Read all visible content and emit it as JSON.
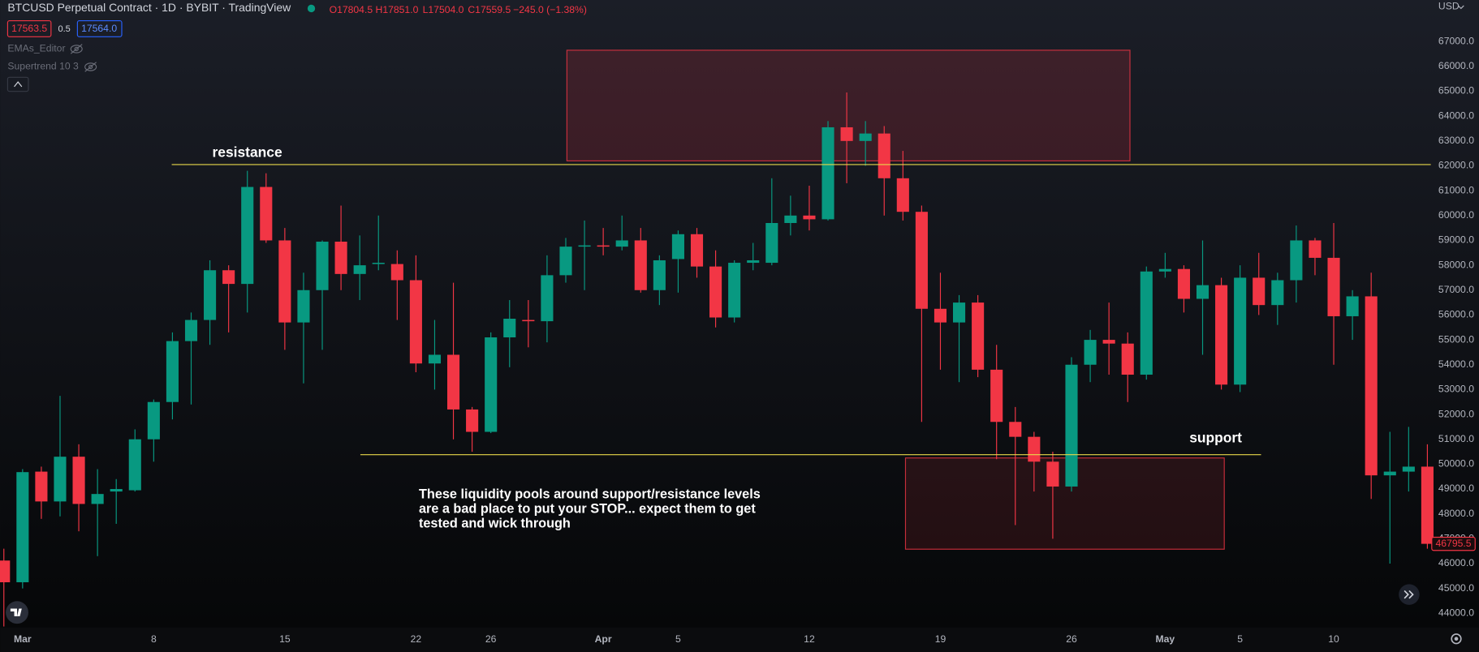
{
  "chart_data": {
    "type": "candlestick",
    "title": "BTCUSD Perpetual Contract · 1D · BYBIT · TradingView",
    "ohlc_legend": [
      "O17804.5",
      "H17851.0",
      "L17504.0",
      "C17559.5",
      "−245.0 (−1.38%)"
    ],
    "bid": "17563.5",
    "spread": "0.5",
    "ask": "17564.0",
    "indicators": [
      "EMAs_Editor",
      "Supertrend 10 3"
    ],
    "currency": "USD",
    "categories": [
      null,
      "Mar",
      null,
      null,
      null,
      null,
      null,
      null,
      "8",
      null,
      null,
      null,
      null,
      null,
      null,
      "15",
      null,
      null,
      null,
      null,
      null,
      null,
      "22",
      null,
      null,
      null,
      "26",
      null,
      null,
      null,
      null,
      null,
      "Apr",
      null,
      null,
      null,
      "5",
      null,
      null,
      null,
      null,
      null,
      null,
      "12",
      null,
      null,
      null,
      null,
      null,
      null,
      "19",
      null,
      null,
      null,
      null,
      null,
      null,
      "26",
      null,
      null,
      null,
      null,
      "May",
      null,
      null,
      null,
      "5",
      null,
      null,
      null,
      null,
      "10",
      null,
      null,
      null,
      null,
      null
    ],
    "open": [
      46123,
      45250,
      49700,
      48500,
      50300,
      48400,
      48900,
      48950,
      51000,
      52500,
      54950,
      55800,
      57800,
      57250,
      61150,
      59000,
      55700,
      57000,
      58950,
      57650,
      58050,
      58050,
      57400,
      54050,
      54400,
      52200,
      51300,
      55100,
      55800,
      55750,
      57600,
      58750,
      58800,
      58750,
      59000,
      57000,
      58250,
      59250,
      57950,
      55900,
      58100,
      58100,
      59700,
      60000,
      59850,
      63550,
      63000,
      63300,
      61500,
      60150,
      56250,
      55700,
      56500,
      53800,
      51700,
      51100,
      50100,
      49100,
      54000,
      55000,
      54850,
      53600,
      57750,
      57850,
      56650,
      57200,
      53200,
      57500,
      56400,
      57400,
      59000,
      58300,
      55950,
      56750,
      49550,
      49700,
      49900
    ],
    "high": [
      46600,
      49800,
      49900,
      52750,
      50800,
      49800,
      49400,
      51400,
      52600,
      55300,
      56100,
      58200,
      58000,
      61800,
      61700,
      59500,
      57700,
      59000,
      60400,
      59200,
      60000,
      58600,
      58400,
      55800,
      57300,
      52300,
      55300,
      56600,
      56600,
      58400,
      59100,
      59800,
      59500,
      60000,
      59500,
      58400,
      59400,
      59500,
      58600,
      58200,
      58900,
      61500,
      60800,
      61200,
      63800,
      64950,
      63800,
      63600,
      62600,
      60400,
      57700,
      56800,
      56800,
      54800,
      52300,
      51300,
      50500,
      54300,
      55400,
      56500,
      55300,
      57950,
      58500,
      58000,
      59000,
      57500,
      58000,
      58500,
      57700,
      59600,
      59100,
      59700,
      57000,
      57700,
      51300,
      51500,
      50800
    ],
    "low": [
      43470,
      45000,
      47800,
      47900,
      47300,
      46300,
      47600,
      48900,
      50100,
      51800,
      52400,
      54800,
      55300,
      56100,
      58900,
      54600,
      53250,
      54600,
      57000,
      56600,
      57800,
      55800,
      53700,
      53000,
      51000,
      50500,
      51250,
      53900,
      54700,
      54900,
      57300,
      57000,
      58400,
      58600,
      56900,
      56400,
      56900,
      57500,
      55500,
      55700,
      57800,
      58000,
      59200,
      59400,
      59800,
      61300,
      62000,
      60000,
      59800,
      51700,
      53800,
      53300,
      53500,
      50200,
      47550,
      48900,
      47000,
      48900,
      53300,
      53600,
      52500,
      53400,
      57500,
      56100,
      54400,
      53000,
      52900,
      56000,
      55600,
      56500,
      57600,
      54000,
      55000,
      48600,
      46000,
      48900,
      46600
    ],
    "close": [
      45250,
      49680,
      48500,
      50300,
      48400,
      48800,
      49000,
      51000,
      52500,
      54950,
      55800,
      57800,
      57250,
      61150,
      59000,
      55700,
      57000,
      58950,
      57650,
      58000,
      58100,
      57400,
      54050,
      54400,
      52200,
      51300,
      55100,
      55850,
      55750,
      57600,
      58750,
      58800,
      58750,
      59000,
      57000,
      58200,
      59250,
      57950,
      55900,
      58100,
      58200,
      59700,
      60000,
      59850,
      63550,
      63000,
      63300,
      61500,
      60150,
      56250,
      55700,
      56500,
      53800,
      51700,
      51100,
      50100,
      49100,
      54000,
      55000,
      54850,
      53600,
      57750,
      57850,
      56650,
      57200,
      53200,
      57500,
      56400,
      57400,
      59000,
      58300,
      55950,
      56750,
      49550,
      49700,
      49900,
      46795.5
    ],
    "up_color": "#089981",
    "down_color": "#f23645",
    "last_price": 46795.5,
    "ylim": [
      43430,
      68670
    ],
    "yticks": [
      {
        "value": 67000,
        "label": "67000.0"
      },
      {
        "value": 66000,
        "label": "66000.0"
      },
      {
        "value": 65000,
        "label": "65000.0"
      },
      {
        "value": 64000,
        "label": "64000.0"
      },
      {
        "value": 63000,
        "label": "63000.0"
      },
      {
        "value": 62000,
        "label": "62000.0"
      },
      {
        "value": 61000,
        "label": "61000.0"
      },
      {
        "value": 60000,
        "label": "60000.0"
      },
      {
        "value": 59000,
        "label": "59000.0"
      },
      {
        "value": 58000,
        "label": "58000.0"
      },
      {
        "value": 57000,
        "label": "57000.0"
      },
      {
        "value": 56000,
        "label": "56000.0"
      },
      {
        "value": 55000,
        "label": "55000.0"
      },
      {
        "value": 54000,
        "label": "54000.0"
      },
      {
        "value": 53000,
        "label": "53000.0"
      },
      {
        "value": 52000,
        "label": "52000.0"
      },
      {
        "value": 51000,
        "label": "51000.0"
      },
      {
        "value": 50000,
        "label": "50000.0"
      },
      {
        "value": 49000,
        "label": "49000.0"
      },
      {
        "value": 48000,
        "label": "48000.0"
      },
      {
        "value": 47000,
        "label": "47000.0"
      },
      {
        "value": 46000,
        "label": "46000.0"
      },
      {
        "value": 45000,
        "label": "45000.0"
      },
      {
        "value": 44000,
        "label": "44000.0"
      }
    ],
    "levels": [
      {
        "label": "resistance",
        "value": 62050,
        "color": "#e8d84a"
      },
      {
        "label": "support",
        "value": 50380,
        "color": "#e8d84a"
      }
    ],
    "zones": [
      {
        "range": [
          62200,
          66650
        ],
        "color": "#f23645"
      },
      {
        "range": [
          46580,
          50250
        ],
        "color": "#f23645"
      }
    ],
    "note": [
      "These liquidity pools around support/resistance levels",
      "are a bad place to put your STOP... expect them to get",
      "tested and wick through"
    ]
  }
}
